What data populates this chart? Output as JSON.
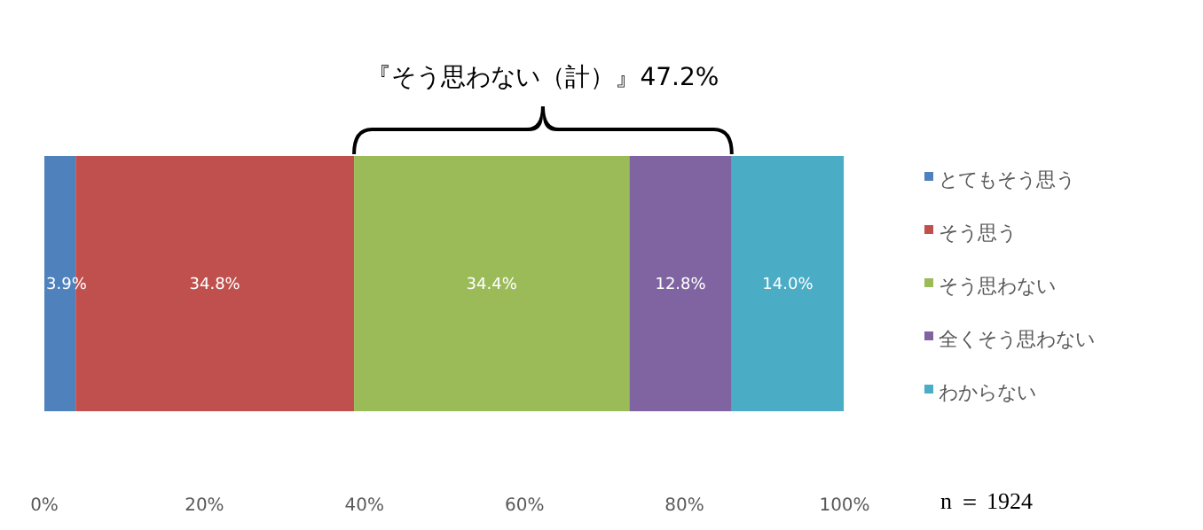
{
  "chart_data": {
    "type": "bar",
    "orientation": "horizontal",
    "stacked": true,
    "categories": [
      null
    ],
    "series": [
      {
        "name": "とてもそう思う",
        "color": "#4f81bd",
        "values": [
          3.9
        ],
        "value_labels": [
          "3.9%"
        ]
      },
      {
        "name": "そう思う",
        "color": "#c0504d",
        "values": [
          34.8
        ],
        "value_labels": [
          "34.8%"
        ]
      },
      {
        "name": "そう思わない",
        "color": "#9bbb59",
        "values": [
          34.4
        ],
        "value_labels": [
          "34.4%"
        ]
      },
      {
        "name": "全くそう思わない",
        "color": "#8064a2",
        "values": [
          12.8
        ],
        "value_labels": [
          "12.8%"
        ]
      },
      {
        "name": "わからない",
        "color": "#4bacc6",
        "values": [
          14.0
        ],
        "value_labels": [
          "14.0%"
        ]
      }
    ],
    "xlim": [
      0,
      100
    ],
    "xticks": [
      {
        "value": 0,
        "label": "0%"
      },
      {
        "value": 20,
        "label": "20%"
      },
      {
        "value": 40,
        "label": "40%"
      },
      {
        "value": 60,
        "label": "60%"
      },
      {
        "value": 80,
        "label": "80%"
      },
      {
        "value": 100,
        "label": "100%"
      }
    ],
    "legend": "right",
    "annotations": [
      "『そう思わない（計）』47.2%",
      "n ＝ 1924"
    ]
  }
}
